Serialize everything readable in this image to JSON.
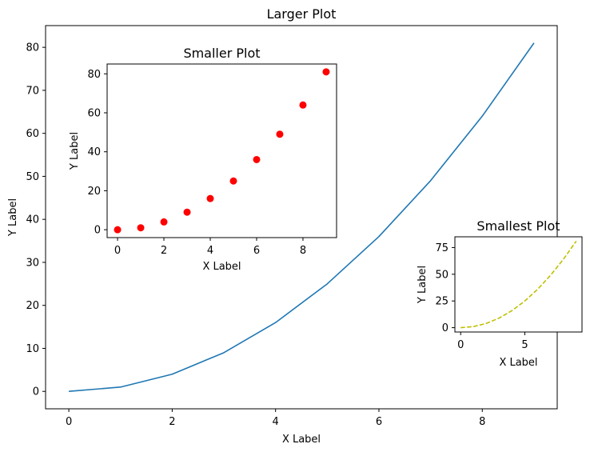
{
  "chart_data": [
    {
      "type": "line",
      "title": "Larger Plot",
      "xlabel": "X Label",
      "ylabel": "Y Label",
      "x": [
        0,
        1,
        2,
        3,
        4,
        5,
        6,
        7,
        8,
        9
      ],
      "series": [
        {
          "values": [
            0,
            1,
            4,
            9,
            16,
            25,
            36,
            49,
            64,
            81
          ],
          "color": "#1f77b4",
          "style": "solid"
        }
      ],
      "xticks": [
        0,
        2,
        4,
        6,
        8
      ],
      "yticks": [
        0,
        10,
        20,
        30,
        40,
        50,
        60,
        70,
        80
      ],
      "xlim": [
        -0.45,
        9.45
      ],
      "ylim": [
        -4.05,
        85.05
      ],
      "grid": false
    },
    {
      "type": "scatter",
      "title": "Smaller Plot",
      "xlabel": "X Label",
      "ylabel": "Y Label",
      "x": [
        0,
        1,
        2,
        3,
        4,
        5,
        6,
        7,
        8,
        9
      ],
      "series": [
        {
          "values": [
            0,
            1,
            4,
            9,
            16,
            25,
            36,
            49,
            64,
            81
          ],
          "color": "#ff0000",
          "marker": "o"
        }
      ],
      "xticks": [
        0,
        2,
        4,
        6,
        8
      ],
      "yticks": [
        0,
        20,
        40,
        60,
        80
      ],
      "xlim": [
        -0.45,
        9.45
      ],
      "ylim": [
        -4.05,
        85.05
      ],
      "grid": false
    },
    {
      "type": "line",
      "title": "Smallest Plot",
      "xlabel": "X Label",
      "ylabel": "Y Label",
      "x": [
        0,
        1,
        2,
        3,
        4,
        5,
        6,
        7,
        8,
        9
      ],
      "series": [
        {
          "values": [
            0,
            1,
            4,
            9,
            16,
            25,
            36,
            49,
            64,
            81
          ],
          "color": "#bfbf00",
          "style": "dashed"
        }
      ],
      "xticks": [
        0,
        5
      ],
      "yticks": [
        0,
        25,
        50,
        75
      ],
      "xlim": [
        -0.45,
        9.45
      ],
      "ylim": [
        -4.05,
        85.05
      ],
      "grid": false
    }
  ]
}
